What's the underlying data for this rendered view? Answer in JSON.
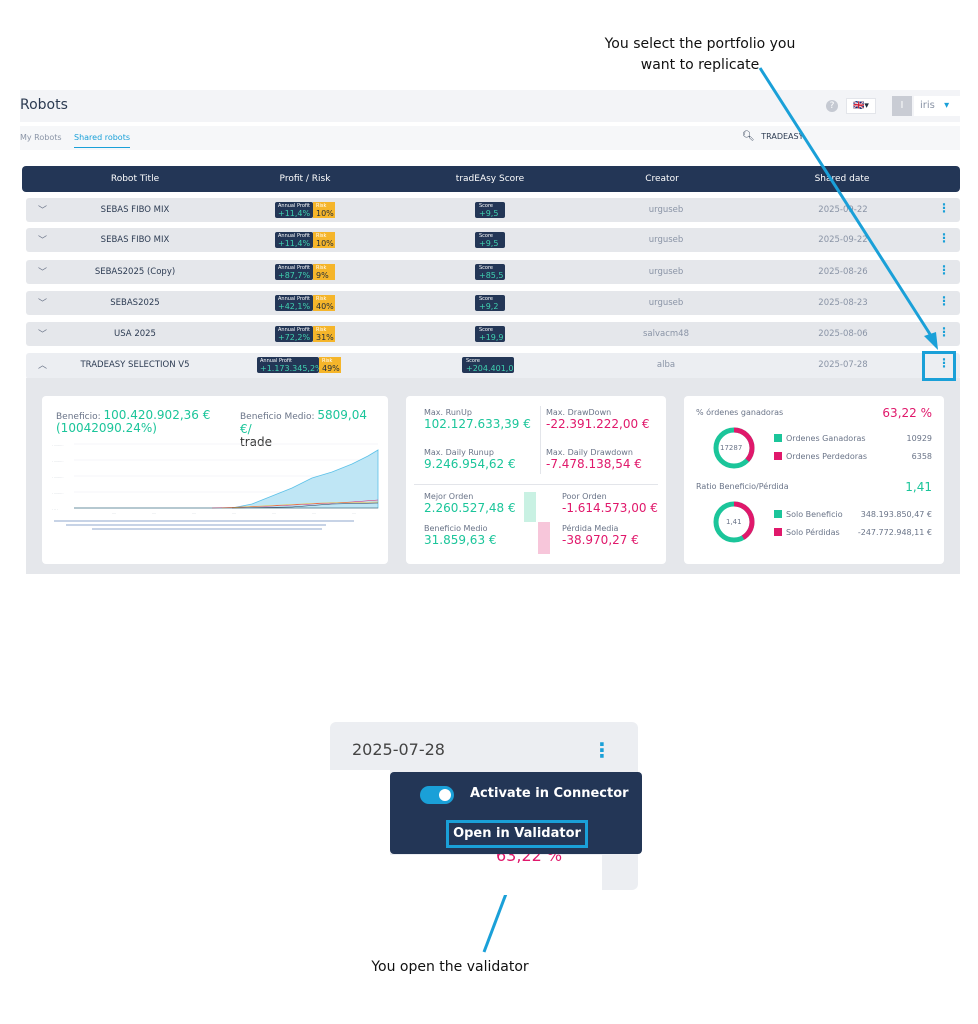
{
  "annotations": {
    "top_line1": "You select the portfolio you",
    "top_line2": "want to replicate",
    "bottom": "You open the validator"
  },
  "header": {
    "title": "Robots",
    "user": "iris",
    "avatar_letter": "I",
    "tabs": [
      "My Robots",
      "Shared robots"
    ],
    "search_value": "TRADEASY"
  },
  "table": {
    "columns": [
      "Robot Title",
      "Profit / Risk",
      "tradEAsy Score",
      "Creator",
      "Shared date"
    ],
    "profit_label": "Annual Profit",
    "risk_label": "Risk",
    "score_label": "Score",
    "rows": [
      {
        "title": "SEBAS FIBO MIX",
        "profit": "+11,4%",
        "risk": "10%",
        "score": "+9,5",
        "creator": "urguseb",
        "date": "2025-09-22"
      },
      {
        "title": "SEBAS FIBO MIX",
        "profit": "+11,4%",
        "risk": "10%",
        "score": "+9,5",
        "creator": "urguseb",
        "date": "2025-09-22"
      },
      {
        "title": "SEBAS2025 (Copy)",
        "profit": "+87,7%",
        "risk": "9%",
        "score": "+85,5",
        "creator": "urguseb",
        "date": "2025-08-26"
      },
      {
        "title": "SEBAS2025",
        "profit": "+42,1%",
        "risk": "40%",
        "score": "+9,2",
        "creator": "urguseb",
        "date": "2025-08-23"
      },
      {
        "title": "USA 2025",
        "profit": "+72,2%",
        "risk": "31%",
        "score": "+19,9",
        "creator": "salvacm48",
        "date": "2025-08-06"
      },
      {
        "title": "TRADEASY SELECTION V5",
        "profit": "+1.173.345,2%",
        "risk": "49%",
        "score": "+204.401,0",
        "creator": "alba",
        "date": "2025-07-28"
      }
    ]
  },
  "details": {
    "beneficio_label": "Beneficio:",
    "beneficio_value": "100.420.902,36 €",
    "beneficio_pct": "(10042090.24%)",
    "beneficio_medio_label": "Beneficio Medio:",
    "beneficio_medio_value": "5809,04 €/",
    "beneficio_medio_unit": "trade",
    "max_runup_label": "Max. RunUp",
    "max_runup": "102.127.633,39 €",
    "max_drawdown_label": "Max. DrawDown",
    "max_drawdown": "-22.391.222,00 €",
    "max_daily_runup_label": "Max. Daily Runup",
    "max_daily_runup": "9.246.954,62 €",
    "max_daily_drawdown_label": "Max. Daily Drawdown",
    "max_daily_drawdown": "-7.478.138,54 €",
    "mejor_orden_label": "Mejor Orden",
    "mejor_orden": "2.260.527,48 €",
    "poor_orden_label": "Poor Orden",
    "poor_orden": "-1.614.573,00 €",
    "beneficio_medio2_label": "Beneficio Medio",
    "beneficio_medio2": "31.859,63 €",
    "perdida_media_label": "Pérdida Media",
    "perdida_media": "-38.970,27 €",
    "win_pct_label": "% órdenes ganadoras",
    "win_pct": "63,22 %",
    "donut1_center": "17287",
    "ganadoras_label": "Ordenes Ganadoras",
    "ganadoras": "10929",
    "perdedoras_label": "Ordenes Perdedoras",
    "perdedoras": "6358",
    "ratio_label": "Ratio Beneficio/Pérdida",
    "ratio": "1,41",
    "donut2_center": "1,41",
    "solo_beneficio_label": "Solo Beneficio",
    "solo_beneficio": "348.193.850,47 €",
    "solo_perdidas_label": "Solo Pérdidas",
    "solo_perdidas": "-247.772.948,11 €"
  },
  "colors": {
    "navy": "#233656",
    "accent": "#1aa0d8",
    "green": "#1bc59a",
    "pink": "#e0186b",
    "risk": "#f5b52a"
  },
  "zoom": {
    "date": "2025-07-28",
    "activate_label": "Activate in Connector",
    "open_validator_label": "Open in Validator",
    "behind_text": "63,22 %"
  }
}
